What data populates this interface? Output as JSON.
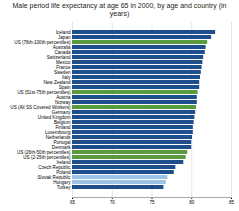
{
  "chart_data": {
    "type": "bar",
    "orientation": "horizontal",
    "title": "Male period life expectancy at age 65 in 2000, by age and country (in years)",
    "categories": [
      "Iceland",
      "Japan",
      "US (76th-100th percentiles)",
      "Australia",
      "Canada",
      "Switzerland",
      "Mexico",
      "France",
      "Sweden",
      "Italy",
      "New Zealand",
      "Spain",
      "US (51st-75th percentiles)",
      "Austria",
      "Norway",
      "US (All SS Covered Workers)",
      "Germany",
      "United Kingdom",
      "Belgium",
      "Finland",
      "Luxembourg",
      "Netherlands",
      "Portugal",
      "Denmark",
      "US (26th-50th percentiles)",
      "US (2-25th percentiles)",
      "Ireland",
      "Czech Republic",
      "Poland",
      "Slovak Republic",
      "Hungary",
      "Turkey"
    ],
    "values": [
      83.0,
      82.5,
      82.0,
      81.8,
      81.7,
      81.5,
      81.4,
      81.3,
      81.2,
      81.1,
      81.0,
      81.0,
      80.8,
      80.7,
      80.7,
      80.6,
      80.5,
      80.4,
      80.3,
      80.2,
      80.2,
      80.1,
      80.0,
      80.0,
      79.5,
      79.3,
      79.0,
      78.0,
      77.8,
      77.0,
      76.8,
      76.5
    ],
    "colors": [
      "#1f4e8c",
      "#1f4e8c",
      "#5b9b3f",
      "#1f4e8c",
      "#1f4e8c",
      "#1f4e8c",
      "#1f4e8c",
      "#1f4e8c",
      "#1f4e8c",
      "#1f4e8c",
      "#1f4e8c",
      "#1f4e8c",
      "#5b9b3f",
      "#1f4e8c",
      "#1f4e8c",
      "#5b9b3f",
      "#1f4e8c",
      "#1f4e8c",
      "#1f4e8c",
      "#1f4e8c",
      "#1f4e8c",
      "#1f4e8c",
      "#1f4e8c",
      "#1f4e8c",
      "#5b9b3f",
      "#5b9b3f",
      "#1f4e8c",
      "#1f4e8c",
      "#1f4e8c",
      "#9dc3e6",
      "#9dc3e6",
      "#1f4e8c"
    ],
    "xlim": [
      65,
      85
    ],
    "xticks": [
      65,
      70,
      75,
      80,
      85
    ],
    "grid": true
  }
}
